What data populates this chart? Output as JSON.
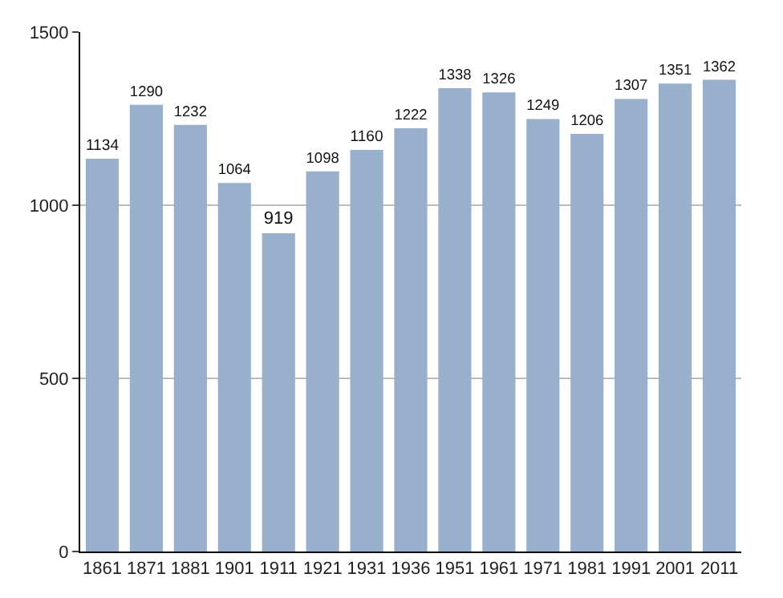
{
  "chart_data": {
    "type": "bar",
    "categories": [
      "1861",
      "1871",
      "1881",
      "1901",
      "1911",
      "1921",
      "1931",
      "1936",
      "1951",
      "1961",
      "1971",
      "1981",
      "1991",
      "2001",
      "2011"
    ],
    "values": [
      1134,
      1290,
      1232,
      1064,
      919,
      1098,
      1160,
      1222,
      1338,
      1326,
      1249,
      1206,
      1307,
      1351,
      1362
    ],
    "color": "#98b0cb",
    "ylim": [
      0,
      1500
    ],
    "yticks": [
      0,
      500,
      1000,
      1500
    ],
    "grid": "y",
    "data_labels": true
  }
}
